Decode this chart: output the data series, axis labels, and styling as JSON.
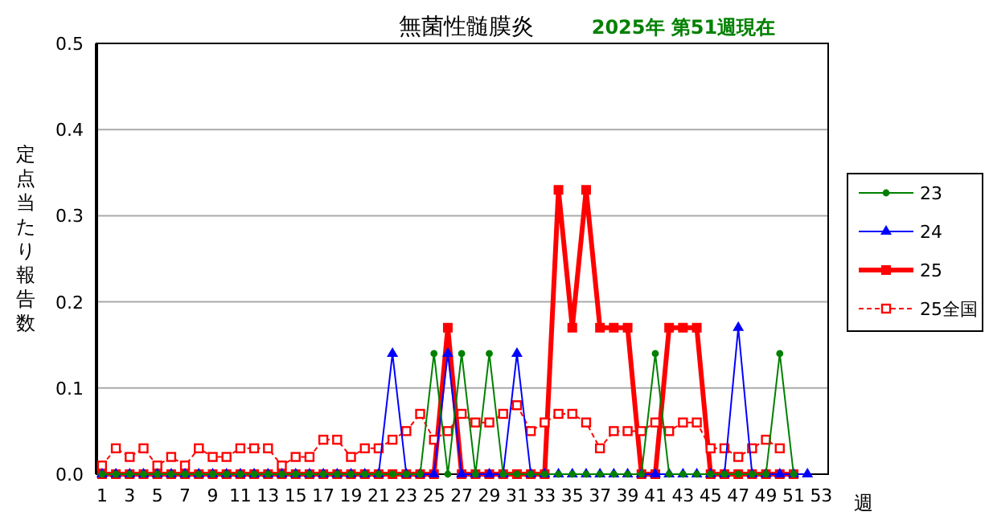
{
  "chart_data": {
    "type": "line",
    "title": "無菌性髄膜炎",
    "subtitle": "2025年 第51週現在",
    "xlabel": "週",
    "ylabel": "定点当たり報告数",
    "xlim": [
      0.6,
      53.5
    ],
    "xticks": [
      1,
      3,
      5,
      7,
      9,
      11,
      13,
      15,
      17,
      19,
      21,
      23,
      25,
      27,
      29,
      31,
      33,
      35,
      37,
      39,
      41,
      43,
      45,
      47,
      49,
      51,
      53
    ],
    "ylim": [
      0,
      0.5
    ],
    "yticks": [
      {
        "value": 0,
        "label": "0.0"
      },
      0.1,
      0.2,
      0.3,
      0.4,
      0.5
    ],
    "grid": "y",
    "legend": "right",
    "series": [
      {
        "name": "23",
        "color": "#008000",
        "marker": "circle",
        "line_style": "solid",
        "x": [
          1,
          2,
          3,
          4,
          5,
          6,
          7,
          8,
          9,
          10,
          11,
          12,
          13,
          14,
          15,
          16,
          17,
          18,
          19,
          20,
          21,
          22,
          23,
          24,
          25,
          26,
          27,
          28,
          29,
          30,
          31,
          32,
          33,
          34,
          35,
          36,
          37,
          38,
          39,
          40,
          41,
          42,
          43,
          44,
          45,
          46,
          47,
          48,
          49,
          50,
          51
        ],
        "values": [
          0,
          0,
          0,
          0,
          0,
          0,
          0,
          0,
          0,
          0,
          0,
          0,
          0,
          0,
          0,
          0,
          0,
          0,
          0,
          0,
          0,
          0,
          0,
          0,
          0.14,
          0,
          0.14,
          0,
          0.14,
          0,
          0,
          0,
          0,
          0,
          0,
          0,
          0,
          0,
          0,
          0,
          0.14,
          0,
          0,
          0,
          0,
          0,
          0,
          0,
          0,
          0.14,
          0
        ]
      },
      {
        "name": "24",
        "color": "#0000ff",
        "marker": "triangle",
        "line_style": "solid",
        "x": [
          1,
          2,
          3,
          4,
          5,
          6,
          7,
          8,
          9,
          10,
          11,
          12,
          13,
          14,
          15,
          16,
          17,
          18,
          19,
          20,
          21,
          22,
          23,
          24,
          25,
          26,
          27,
          28,
          29,
          30,
          31,
          32,
          33,
          34,
          35,
          36,
          37,
          38,
          39,
          40,
          41,
          42,
          43,
          44,
          45,
          46,
          47,
          48,
          49,
          50,
          51,
          52
        ],
        "values": [
          0,
          0,
          0,
          0,
          0,
          0,
          0,
          0,
          0,
          0,
          0,
          0,
          0,
          0,
          0,
          0,
          0,
          0,
          0,
          0,
          0,
          0.14,
          0,
          0,
          0,
          0.14,
          0,
          0,
          0,
          0,
          0.14,
          0,
          0,
          0,
          0,
          0,
          0,
          0,
          0,
          0,
          0,
          0,
          0,
          0,
          0,
          0,
          0.17,
          0,
          0,
          0,
          0,
          0
        ]
      },
      {
        "name": "25",
        "color": "#ff0000",
        "marker": "square",
        "line_style": "solid",
        "x": [
          1,
          2,
          3,
          4,
          5,
          6,
          7,
          8,
          9,
          10,
          11,
          12,
          13,
          14,
          15,
          16,
          17,
          18,
          19,
          20,
          21,
          22,
          23,
          24,
          25,
          26,
          27,
          28,
          29,
          30,
          31,
          32,
          33,
          34,
          35,
          36,
          37,
          38,
          39,
          40,
          41,
          42,
          43,
          44,
          45,
          46,
          47,
          48,
          49,
          50,
          51
        ],
        "values": [
          0,
          0,
          0,
          0,
          0,
          0,
          0,
          0,
          0,
          0,
          0,
          0,
          0,
          0,
          0,
          0,
          0,
          0,
          0,
          0,
          0,
          0,
          0,
          0,
          0,
          0.17,
          0,
          0,
          0,
          0,
          0,
          0,
          0,
          0.33,
          0.17,
          0.33,
          0.17,
          0.17,
          0.17,
          0,
          0,
          0.17,
          0.17,
          0.17,
          0,
          0,
          0,
          0,
          0,
          0,
          0
        ]
      },
      {
        "name": "25全国",
        "color": "#ff0000",
        "marker": "square",
        "line_style": "dashed",
        "x": [
          1,
          2,
          3,
          4,
          5,
          6,
          7,
          8,
          9,
          10,
          11,
          12,
          13,
          14,
          15,
          16,
          17,
          18,
          19,
          20,
          21,
          22,
          23,
          24,
          25,
          26,
          27,
          28,
          29,
          30,
          31,
          32,
          33,
          34,
          35,
          36,
          37,
          38,
          39,
          40,
          41,
          42,
          43,
          44,
          45,
          46,
          47,
          48,
          49,
          50
        ],
        "values": [
          0.01,
          0.03,
          0.02,
          0.03,
          0.01,
          0.02,
          0.01,
          0.03,
          0.02,
          0.02,
          0.03,
          0.03,
          0.03,
          0.01,
          0.02,
          0.02,
          0.04,
          0.04,
          0.02,
          0.03,
          0.03,
          0.04,
          0.05,
          0.07,
          0.04,
          0.05,
          0.07,
          0.06,
          0.06,
          0.07,
          0.08,
          0.05,
          0.06,
          0.07,
          0.07,
          0.06,
          0.03,
          0.05,
          0.05,
          0.05,
          0.06,
          0.05,
          0.06,
          0.06,
          0.03,
          0.03,
          0.02,
          0.03,
          0.04,
          0.03
        ]
      }
    ]
  }
}
